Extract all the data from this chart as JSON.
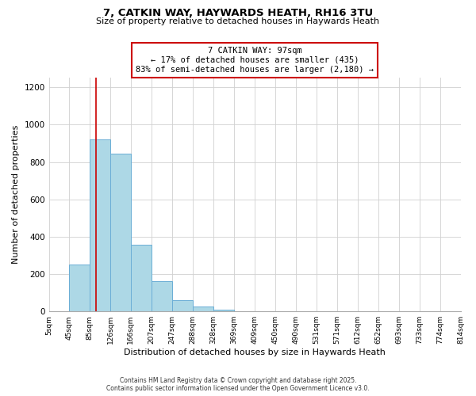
{
  "title": "7, CATKIN WAY, HAYWARDS HEATH, RH16 3TU",
  "subtitle": "Size of property relative to detached houses in Haywards Heath",
  "xlabel": "Distribution of detached houses by size in Haywards Heath",
  "ylabel": "Number of detached properties",
  "bar_edges": [
    5,
    45,
    85,
    126,
    166,
    207,
    247,
    288,
    328,
    369,
    409,
    450,
    490,
    531,
    571,
    612,
    652,
    693,
    733,
    774,
    814
  ],
  "bar_heights": [
    0,
    250,
    920,
    845,
    355,
    160,
    62,
    28,
    10,
    0,
    0,
    0,
    0,
    0,
    0,
    0,
    0,
    0,
    0,
    0
  ],
  "bar_color": "#add8e6",
  "bar_edgecolor": "#6baed6",
  "property_line_x": 97,
  "property_line_color": "#cc0000",
  "annotation_text": "7 CATKIN WAY: 97sqm\n← 17% of detached houses are smaller (435)\n83% of semi-detached houses are larger (2,180) →",
  "annotation_box_edgecolor": "#cc0000",
  "annotation_box_facecolor": "#ffffff",
  "ylim": [
    0,
    1250
  ],
  "yticks": [
    0,
    200,
    400,
    600,
    800,
    1000,
    1200
  ],
  "tick_labels": [
    "5sqm",
    "45sqm",
    "85sqm",
    "126sqm",
    "166sqm",
    "207sqm",
    "247sqm",
    "288sqm",
    "328sqm",
    "369sqm",
    "409sqm",
    "450sqm",
    "490sqm",
    "531sqm",
    "571sqm",
    "612sqm",
    "652sqm",
    "693sqm",
    "733sqm",
    "774sqm",
    "814sqm"
  ],
  "footer_line1": "Contains HM Land Registry data © Crown copyright and database right 2025.",
  "footer_line2": "Contains public sector information licensed under the Open Government Licence v3.0.",
  "background_color": "#ffffff",
  "grid_color": "#d0d0d0"
}
